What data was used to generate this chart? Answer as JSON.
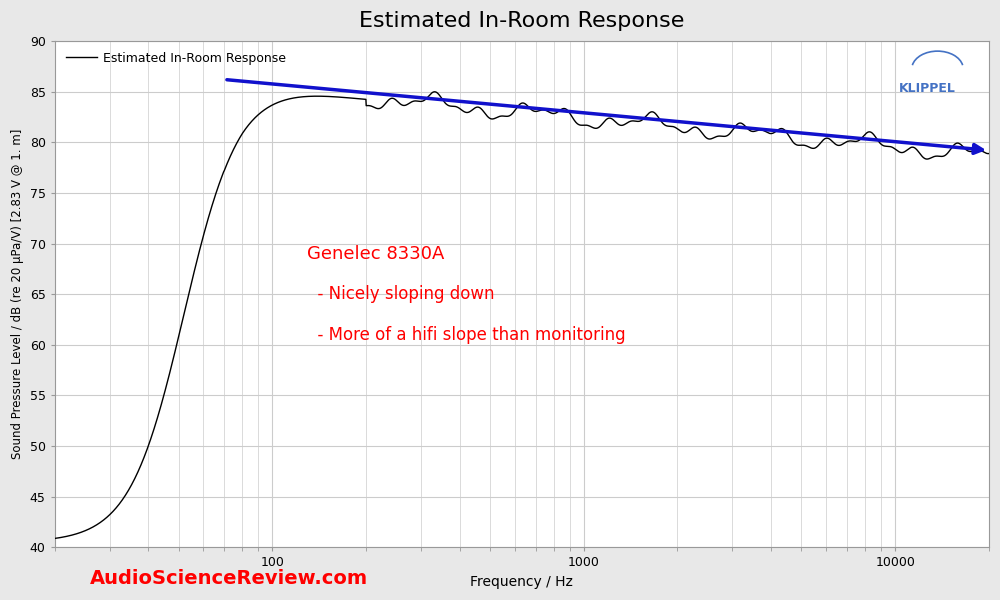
{
  "title": "Estimated In-Room Response",
  "xlabel": "Frequency / Hz",
  "ylabel": "Sound Pressure Level / dB (re 20 μPa/V) [2.83 V @ 1. m]",
  "xlim": [
    20,
    20000
  ],
  "ylim": [
    40,
    90
  ],
  "yticks": [
    40,
    45,
    50,
    55,
    60,
    65,
    70,
    75,
    80,
    85,
    90
  ],
  "background_color": "#e8e8e8",
  "plot_bg_color": "#ffffff",
  "grid_color": "#cccccc",
  "line_color": "#000000",
  "trend_color": "#1111cc",
  "annotation_color": "#ff0000",
  "annotation_title": "Genelec 8330A",
  "annotation_line1": "  - Nicely sloping down",
  "annotation_line2": "  - More of a hifi slope than monitoring",
  "legend_label": "Estimated In-Room Response",
  "watermark_text": "AudioScienceReview.com",
  "watermark_color": "#ff0000",
  "klippel_color": "#4472c4",
  "title_fontsize": 16,
  "annotation_fontsize": 12,
  "trend_start_freq": 70,
  "trend_start_val": 86.2,
  "trend_end_freq": 20000,
  "trend_end_val": 79.2
}
